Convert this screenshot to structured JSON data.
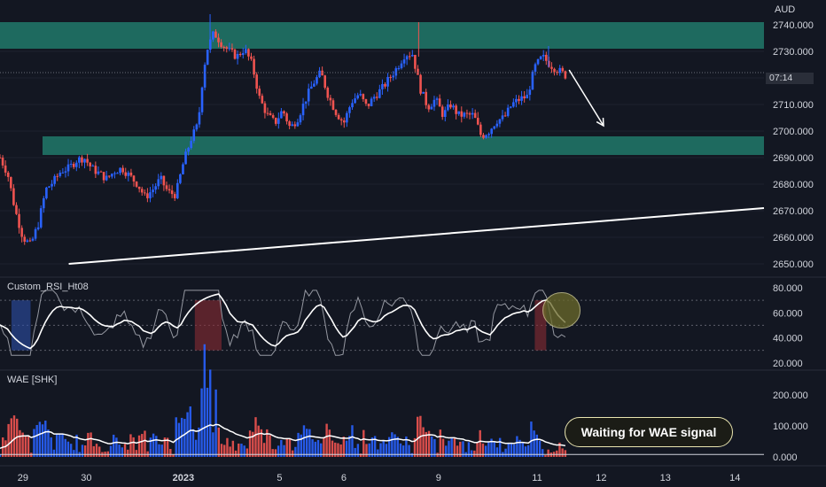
{
  "chart_data": [
    {
      "type": "candlestick",
      "currency": "AUD",
      "y_ticks": [
        "2740.000",
        "2730.000",
        "2720.000",
        "2710.000",
        "2700.000",
        "2690.000",
        "2680.000",
        "2670.000",
        "2660.000",
        "2650.000"
      ],
      "ylim": [
        2646,
        2746
      ],
      "x_ticks": [
        "29",
        "30",
        "2023",
        "5",
        "6",
        "9",
        "11",
        "12",
        "13",
        "14"
      ],
      "current_price_countdown": "07:14",
      "current_price": 2722,
      "zones": [
        {
          "name": "resistance",
          "from": 2731,
          "to": 2741,
          "color": "#1f6f63"
        },
        {
          "name": "support",
          "from": 2691,
          "to": 2698,
          "color": "#1f6f63"
        }
      ],
      "trendline": {
        "start": [
          0.09,
          2650
        ],
        "end": [
          1.0,
          2671
        ]
      },
      "arrow": {
        "start": [
          0.745,
          2723
        ],
        "end": [
          0.79,
          2702
        ]
      },
      "close_path": [
        [
          0.0,
          2690
        ],
        [
          0.01,
          2684
        ],
        [
          0.02,
          2670
        ],
        [
          0.03,
          2660
        ],
        [
          0.04,
          2657
        ],
        [
          0.05,
          2665
        ],
        [
          0.06,
          2678
        ],
        [
          0.07,
          2681
        ],
        [
          0.08,
          2685
        ],
        [
          0.09,
          2686
        ],
        [
          0.1,
          2689
        ],
        [
          0.11,
          2690
        ],
        [
          0.12,
          2686
        ],
        [
          0.13,
          2684
        ],
        [
          0.14,
          2682
        ],
        [
          0.15,
          2685
        ],
        [
          0.16,
          2686
        ],
        [
          0.17,
          2683
        ],
        [
          0.18,
          2680
        ],
        [
          0.19,
          2675
        ],
        [
          0.2,
          2678
        ],
        [
          0.21,
          2682
        ],
        [
          0.22,
          2677
        ],
        [
          0.23,
          2676
        ],
        [
          0.24,
          2688
        ],
        [
          0.25,
          2697
        ],
        [
          0.26,
          2703
        ],
        [
          0.262,
          2712
        ],
        [
          0.27,
          2730
        ],
        [
          0.28,
          2737
        ],
        [
          0.29,
          2733
        ],
        [
          0.3,
          2730
        ],
        [
          0.31,
          2728
        ],
        [
          0.32,
          2731
        ],
        [
          0.33,
          2725
        ],
        [
          0.34,
          2712
        ],
        [
          0.35,
          2706
        ],
        [
          0.36,
          2703
        ],
        [
          0.37,
          2708
        ],
        [
          0.38,
          2701
        ],
        [
          0.39,
          2705
        ],
        [
          0.4,
          2712
        ],
        [
          0.41,
          2718
        ],
        [
          0.42,
          2722
        ],
        [
          0.43,
          2713
        ],
        [
          0.44,
          2707
        ],
        [
          0.45,
          2703
        ],
        [
          0.46,
          2711
        ],
        [
          0.47,
          2714
        ],
        [
          0.48,
          2709
        ],
        [
          0.49,
          2713
        ],
        [
          0.5,
          2716
        ],
        [
          0.51,
          2720
        ],
        [
          0.52,
          2724
        ],
        [
          0.53,
          2729
        ],
        [
          0.54,
          2729
        ],
        [
          0.55,
          2716
        ],
        [
          0.56,
          2709
        ],
        [
          0.57,
          2712
        ],
        [
          0.58,
          2706
        ],
        [
          0.59,
          2710
        ],
        [
          0.6,
          2706
        ],
        [
          0.61,
          2706
        ],
        [
          0.62,
          2706
        ],
        [
          0.63,
          2698
        ],
        [
          0.64,
          2700
        ],
        [
          0.65,
          2704
        ],
        [
          0.66,
          2705
        ],
        [
          0.67,
          2710
        ],
        [
          0.68,
          2712
        ],
        [
          0.69,
          2713
        ],
        [
          0.7,
          2724
        ],
        [
          0.71,
          2728
        ],
        [
          0.72,
          2725
        ],
        [
          0.73,
          2723
        ],
        [
          0.74,
          2721
        ]
      ]
    },
    {
      "type": "line",
      "title": "Custom_RSI_Ht08",
      "y_ticks": [
        "80.000",
        "60.000",
        "40.000",
        "20.000"
      ],
      "ylim": [
        17,
        85
      ],
      "levels": [
        70,
        50,
        30
      ],
      "series": [
        {
          "color": "#ffffff",
          "role": "rsi-signal"
        },
        {
          "color": "#b2b5be",
          "role": "rsi"
        }
      ],
      "ob_zone": {
        "from": 0.255,
        "to": 0.29
      },
      "os_zone": {
        "from": 0.015,
        "to": 0.04
      },
      "ob_zone2": {
        "from": 0.7,
        "to": 0.715
      },
      "highlight": {
        "x": 0.735,
        "y": 62
      }
    },
    {
      "type": "bar",
      "title": "WAE [SHK]",
      "y_ticks": [
        "200.000",
        "100.000",
        "0.000"
      ],
      "ylim": [
        0,
        260
      ],
      "up_color": "#2962ff",
      "down_color": "#ef5350",
      "signal_label": "Waiting for WAE signal"
    }
  ]
}
